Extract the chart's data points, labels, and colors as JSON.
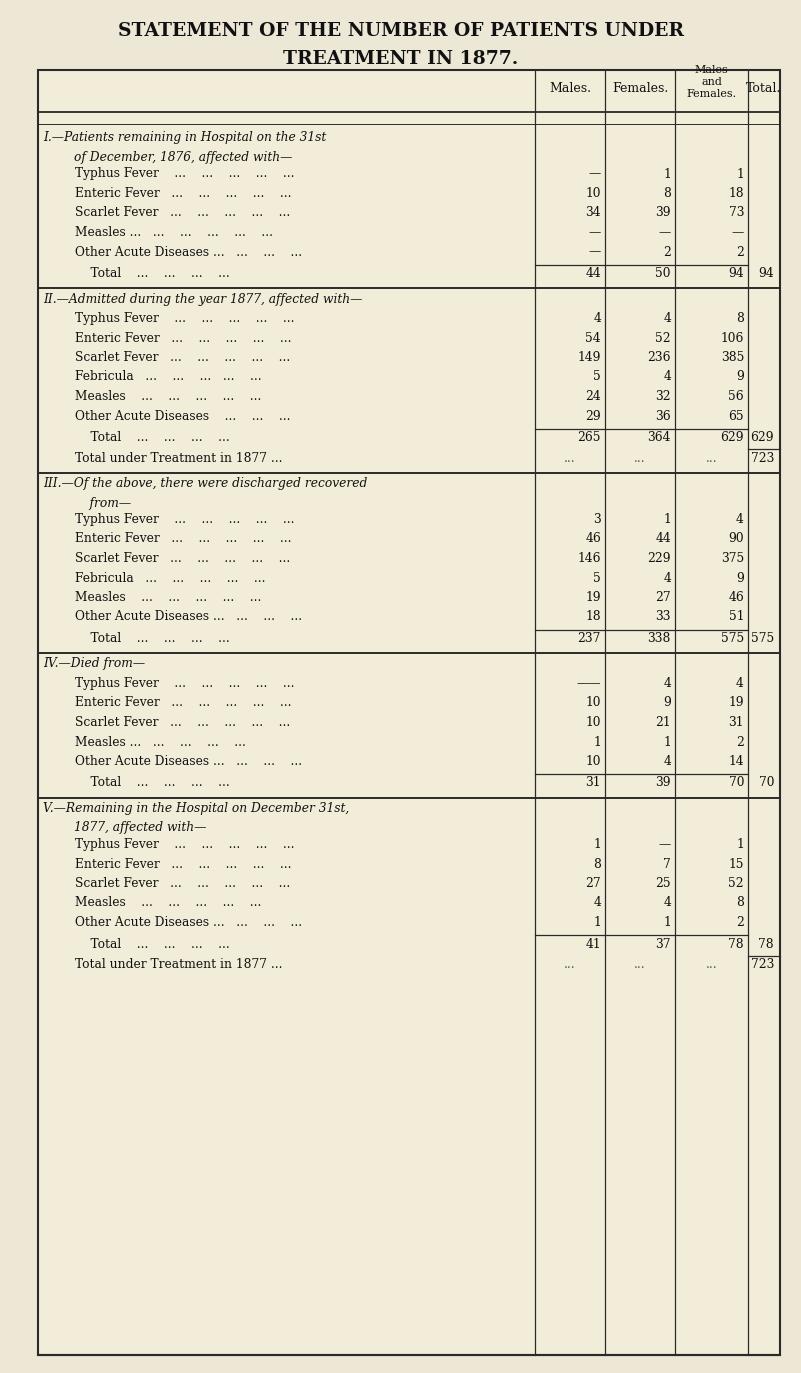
{
  "title_line1": "STATEMENT OF THE NUMBER OF PATIENTS UNDER",
  "title_line2": "TREATMENT IN 1877.",
  "bg_color": "#ede8d5",
  "table_bg": "#f2edd8",
  "sections": [
    {
      "heading1": "I.—Patients remaining in Hospital on the 31st",
      "heading2": "        of December, 1876, affected with—",
      "rows": [
        {
          "label": "        Typhus Fever    ...    ...    ...    ...    ...",
          "males": "—",
          "females": "1",
          "mf": "1",
          "total": ""
        },
        {
          "label": "        Enteric Fever   ...    ...    ...    ...    ...",
          "males": "10",
          "females": "8",
          "mf": "18",
          "total": ""
        },
        {
          "label": "        Scarlet Fever   ...    ...    ...    ...    ...",
          "males": "34",
          "females": "39",
          "mf": "73",
          "total": ""
        },
        {
          "label": "        Measles ...   ...    ...    ...    ...    ...",
          "males": "—",
          "females": "—",
          "mf": "—",
          "total": ""
        },
        {
          "label": "        Other Acute Diseases ...   ...    ...    ...",
          "males": "—",
          "females": "2",
          "mf": "2",
          "total": ""
        }
      ],
      "total_row": {
        "label": "            Total    ...    ...    ...    ...",
        "males": "44",
        "females": "50",
        "mf": "94",
        "total": "94"
      },
      "subtotal_row": null
    },
    {
      "heading1": "II.—Admitted during the year 1877, affected with—",
      "heading2": null,
      "rows": [
        {
          "label": "        Typhus Fever    ...    ...    ...    ...    ...",
          "males": "4",
          "females": "4",
          "mf": "8",
          "total": ""
        },
        {
          "label": "        Enteric Fever   ...    ...    ...    ...    ...",
          "males": "54",
          "females": "52",
          "mf": "106",
          "total": ""
        },
        {
          "label": "        Scarlet Fever   ...    ...    ...    ...    ...",
          "males": "149",
          "females": "236",
          "mf": "385",
          "total": ""
        },
        {
          "label": "        Febricula   ...    ...    ...   ...    ...",
          "males": "5",
          "females": "4",
          "mf": "9",
          "total": ""
        },
        {
          "label": "        Measles    ...    ...    ...    ...    ...",
          "males": "24",
          "females": "32",
          "mf": "56",
          "total": ""
        },
        {
          "label": "        Other Acute Diseases    ...    ...    ...",
          "males": "29",
          "females": "36",
          "mf": "65",
          "total": ""
        }
      ],
      "total_row": {
        "label": "            Total    ...    ...    ...    ...",
        "males": "265",
        "females": "364",
        "mf": "629",
        "total": "629"
      },
      "subtotal_row": {
        "label": "        Total under Treatment in 1877 ...",
        "males": "...",
        "females": "...",
        "mf": "...",
        "total": "723"
      }
    },
    {
      "heading1": "III.—Of the above, there were discharged recovered",
      "heading2": "            from—",
      "rows": [
        {
          "label": "        Typhus Fever    ...    ...    ...    ...    ...",
          "males": "3",
          "females": "1",
          "mf": "4",
          "total": ""
        },
        {
          "label": "        Enteric Fever   ...    ...    ...    ...    ...",
          "males": "46",
          "females": "44",
          "mf": "90",
          "total": ""
        },
        {
          "label": "        Scarlet Fever   ...    ...    ...    ...    ...",
          "males": "146",
          "females": "229",
          "mf": "375",
          "total": ""
        },
        {
          "label": "        Febricula   ...    ...    ...    ...    ...",
          "males": "5",
          "females": "4",
          "mf": "9",
          "total": ""
        },
        {
          "label": "        Measles    ...    ...    ...    ...    ...",
          "males": "19",
          "females": "27",
          "mf": "46",
          "total": ""
        },
        {
          "label": "        Other Acute Diseases ...   ...    ...    ...",
          "males": "18",
          "females": "33",
          "mf": "51",
          "total": ""
        }
      ],
      "total_row": {
        "label": "            Total    ...    ...    ...    ...",
        "males": "237",
        "females": "338",
        "mf": "575",
        "total": "575"
      },
      "subtotal_row": null
    },
    {
      "heading1": "IV.—Died from—",
      "heading2": null,
      "rows": [
        {
          "label": "        Typhus Fever    ...    ...    ...    ...    ...",
          "males": "——",
          "females": "4",
          "mf": "4",
          "total": ""
        },
        {
          "label": "        Enteric Fever   ...    ...    ...    ...    ...",
          "males": "10",
          "females": "9",
          "mf": "19",
          "total": ""
        },
        {
          "label": "        Scarlet Fever   ...    ...    ...    ...    ...",
          "males": "10",
          "females": "21",
          "mf": "31",
          "total": ""
        },
        {
          "label": "        Measles ...   ...    ...    ...    ...",
          "males": "1",
          "females": "1",
          "mf": "2",
          "total": ""
        },
        {
          "label": "        Other Acute Diseases ...   ...    ...    ...",
          "males": "10",
          "females": "4",
          "mf": "14",
          "total": ""
        }
      ],
      "total_row": {
        "label": "            Total    ...    ...    ...    ...",
        "males": "31",
        "females": "39",
        "mf": "70",
        "total": "70"
      },
      "subtotal_row": null
    },
    {
      "heading1": "V.—Remaining in the Hospital on December 31st,",
      "heading2": "        1877, affected with—",
      "rows": [
        {
          "label": "        Typhus Fever    ...    ...    ...    ...    ...",
          "males": "1",
          "females": "—",
          "mf": "1",
          "total": ""
        },
        {
          "label": "        Enteric Fever   ...    ...    ...    ...    ...",
          "males": "8",
          "females": "7",
          "mf": "15",
          "total": ""
        },
        {
          "label": "        Scarlet Fever   ...    ...    ...    ...    ...",
          "males": "27",
          "females": "25",
          "mf": "52",
          "total": ""
        },
        {
          "label": "        Measles    ...    ...    ...    ...    ...",
          "males": "4",
          "females": "4",
          "mf": "8",
          "total": ""
        },
        {
          "label": "        Other Acute Diseases ...   ...    ...    ...",
          "males": "1",
          "females": "1",
          "mf": "2",
          "total": ""
        }
      ],
      "total_row": {
        "label": "            Total    ...    ...    ...    ...",
        "males": "41",
        "females": "37",
        "mf": "78",
        "total": "78"
      },
      "subtotal_row": {
        "label": "        Total under Treatment in 1877 ...",
        "males": "...",
        "females": "...",
        "mf": "...",
        "total": "723"
      }
    }
  ]
}
